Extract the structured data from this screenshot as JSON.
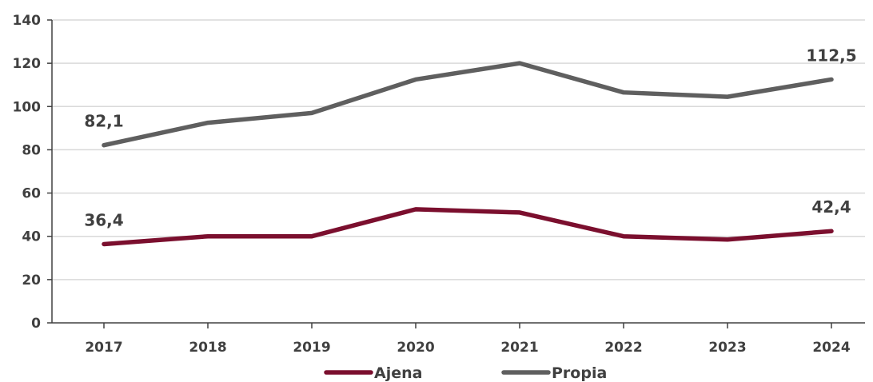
{
  "chart_data": {
    "type": "line",
    "title": "",
    "xlabel": "",
    "ylabel": "",
    "categories": [
      "2017",
      "2018",
      "2019",
      "2020",
      "2021",
      "2022",
      "2023",
      "2024"
    ],
    "ylim": [
      0,
      140
    ],
    "yticks": [
      "0",
      "20",
      "40",
      "60",
      "80",
      "100",
      "120",
      "140"
    ],
    "grid": true,
    "legend_position": "bottom",
    "series": [
      {
        "name": "Ajena",
        "color": "#7B0F2E",
        "values": [
          36.4,
          40.0,
          40.0,
          52.5,
          51.0,
          40.0,
          38.5,
          42.4
        ],
        "data_labels": [
          {
            "index": 0,
            "text": "36,4"
          },
          {
            "index": 7,
            "text": "42,4"
          }
        ]
      },
      {
        "name": "Propia",
        "color": "#5F5F5F",
        "values": [
          82.1,
          92.5,
          97.0,
          112.5,
          120.0,
          106.5,
          104.5,
          112.5
        ],
        "data_labels": [
          {
            "index": 0,
            "text": "82,1"
          },
          {
            "index": 7,
            "text": "112,5"
          }
        ]
      }
    ]
  }
}
